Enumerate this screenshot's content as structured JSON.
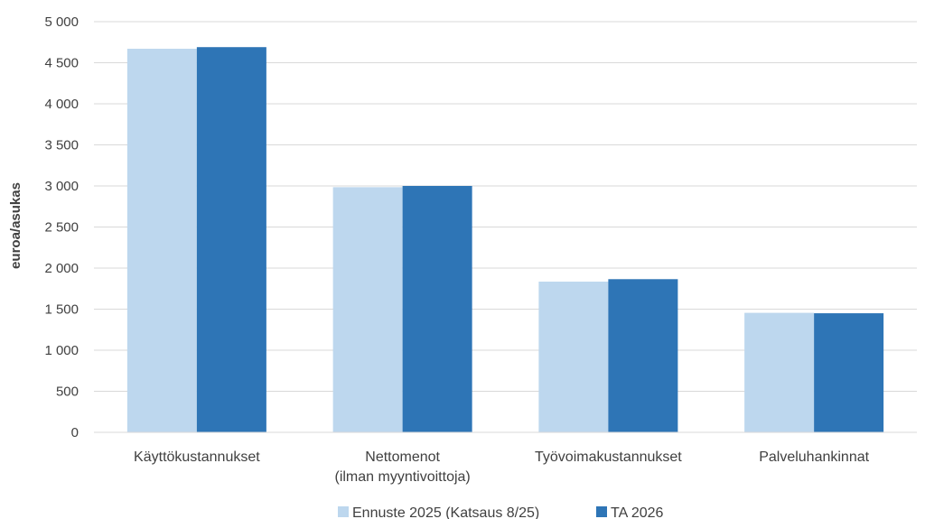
{
  "chart_data": {
    "type": "bar",
    "ylabel": "euroa/asukas",
    "xlabel": "",
    "ylim": [
      0,
      5000
    ],
    "y_ticks": [
      0,
      500,
      1000,
      1500,
      2000,
      2500,
      3000,
      3500,
      4000,
      4500,
      5000
    ],
    "y_tick_labels": [
      "0",
      "500",
      "1 000",
      "1 500",
      "2 000",
      "2 500",
      "3 000",
      "3 500",
      "4 000",
      "4 500",
      "5 000"
    ],
    "categories": [
      [
        "Käyttökustannukset"
      ],
      [
        "Nettomenot",
        "(ilman myyntivoittoja)"
      ],
      [
        "Työvoimakustannukset"
      ],
      [
        "Palveluhankinnat"
      ]
    ],
    "series": [
      {
        "name": "Ennuste 2025 (Katsaus 8/25)",
        "color": "#BDD7EE",
        "values": [
          4670,
          2985,
          1835,
          1455
        ]
      },
      {
        "name": "TA 2026",
        "color": "#2E75B6",
        "values": [
          4690,
          3000,
          1865,
          1450
        ]
      }
    ],
    "grid": true,
    "legend_position": "bottom"
  }
}
